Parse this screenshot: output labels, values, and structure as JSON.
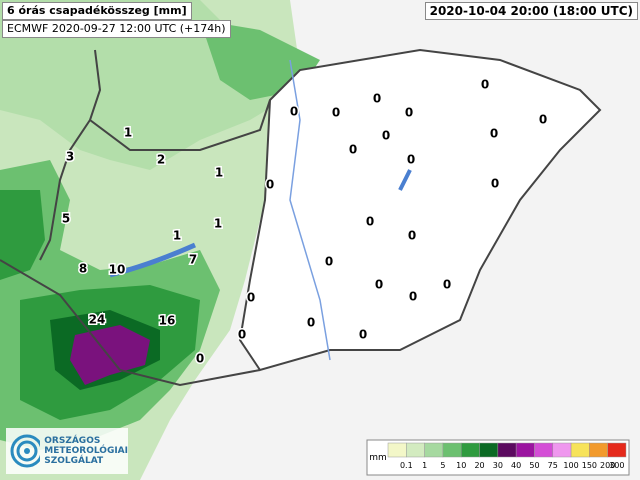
{
  "header": {
    "title": "6 órás csapadékösszeg [mm]",
    "model_run": "ECMWF 2020-09-27 12:00 UTC (+174h)",
    "valid_time": "2020-10-04 20:00 (18:00 UTC)"
  },
  "logo": {
    "lines": [
      "ORSZÁGOS",
      "METEOROLÓGIAI",
      "SZOLGÁLAT"
    ]
  },
  "legend": {
    "unit": "mm",
    "ticks": [
      0.1,
      1,
      5,
      10,
      20,
      30,
      40,
      50,
      75,
      100,
      150,
      200,
      300
    ],
    "colors": [
      "#f3f7c8",
      "#d3ebc0",
      "#a6d9a0",
      "#6cc070",
      "#2f9b3f",
      "#0b6a24",
      "#5b0a5f",
      "#9b14a0",
      "#d44ed6",
      "#ef97ee",
      "#f7e35a",
      "#f29a2c",
      "#e52a1c"
    ]
  },
  "stations": [
    1,
    2,
    3,
    1,
    5,
    1,
    1,
    8,
    10,
    7,
    24,
    16,
    0,
    0,
    0,
    0,
    0,
    0,
    0,
    0,
    0,
    0,
    0,
    0,
    0,
    0,
    0,
    0,
    0,
    0,
    0,
    0,
    0,
    0,
    0
  ]
}
